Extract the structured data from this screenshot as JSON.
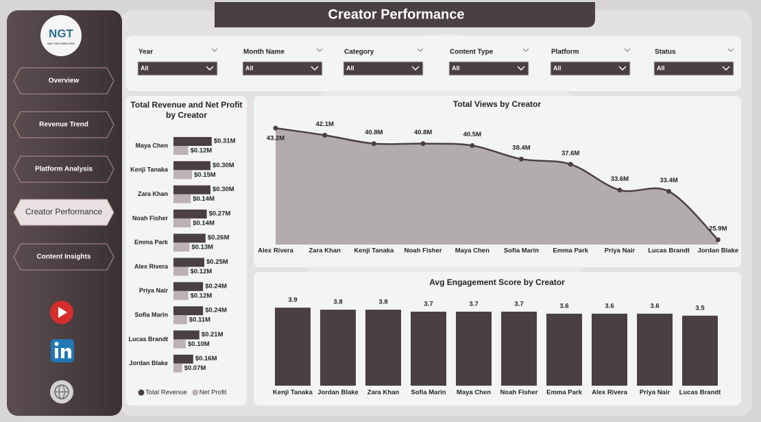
{
  "header": {
    "title": "Creator Performance"
  },
  "logo": {
    "text": "NGT",
    "subtitle": "NEXT GEN TEMPLATES"
  },
  "nav": [
    "Overview",
    "Revenue Trend",
    "Platform Analysis",
    "Creator Performance",
    "Content Insights"
  ],
  "filters": [
    {
      "label": "Year",
      "value": "All"
    },
    {
      "label": "Month Name",
      "value": "All"
    },
    {
      "label": "Category",
      "value": "All"
    },
    {
      "label": "Content Type",
      "value": "All"
    },
    {
      "label": "Platform",
      "value": "All"
    },
    {
      "label": "Status",
      "value": "All"
    }
  ],
  "chart_data": [
    {
      "type": "hbar",
      "title": "Total Revenue and Net Profit by Creator",
      "categories": [
        "Maya Chen",
        "Kenji Tanaka",
        "Zara Khan",
        "Noah Fisher",
        "Emma Park",
        "Alex Rivera",
        "Priya Nair",
        "Sofia Marin",
        "Lucas Brandt",
        "Jordan Blake"
      ],
      "series": [
        {
          "name": "Total Revenue",
          "color": "#4a3f41",
          "values": [
            0.31,
            0.3,
            0.3,
            0.27,
            0.26,
            0.25,
            0.24,
            0.24,
            0.21,
            0.16
          ],
          "value_labels": [
            "$0.31M",
            "$0.30M",
            "$0.30M",
            "$0.27M",
            "$0.26M",
            "$0.25M",
            "$0.24M",
            "$0.24M",
            "$0.21M",
            "$0.16M"
          ]
        },
        {
          "name": "Net Profit",
          "color": "#bcb1b3",
          "values": [
            0.12,
            0.15,
            0.14,
            0.14,
            0.13,
            0.12,
            0.12,
            0.11,
            0.1,
            0.07
          ],
          "value_labels": [
            "$0.12M",
            "$0.15M",
            "$0.14M",
            "$0.14M",
            "$0.13M",
            "$0.12M",
            "$0.12M",
            "$0.11M",
            "$0.10M",
            "$0.07M"
          ]
        }
      ]
    },
    {
      "type": "area",
      "title": "Total Views by Creator",
      "color": "#4a3f41",
      "fill": "#b3acad",
      "categories": [
        "Alex Rivera",
        "Zara Khan",
        "Kenji Tanaka",
        "Noah Fisher",
        "Maya Chen",
        "Sofia Marin",
        "Emma Park",
        "Priya Nair",
        "Lucas Brandt",
        "Jordan Blake"
      ],
      "values": [
        43.2,
        42.1,
        40.8,
        40.8,
        40.5,
        38.4,
        37.6,
        33.6,
        33.4,
        25.9
      ],
      "value_labels": [
        "43.2M",
        "42.1M",
        "40.8M",
        "40.8M",
        "40.5M",
        "38.4M",
        "37.6M",
        "33.6M",
        "33.4M",
        "25.9M"
      ]
    },
    {
      "type": "bar",
      "title": "Avg Engagement Score by Creator",
      "color": "#4a3f41",
      "categories": [
        "Kenji Tanaka",
        "Jordan Blake",
        "Zara Khan",
        "Sofia Marin",
        "Maya Chen",
        "Noah Fisher",
        "Emma Park",
        "Alex Rivera",
        "Priya Nair",
        "Lucas Brandt"
      ],
      "values": [
        3.9,
        3.8,
        3.8,
        3.7,
        3.7,
        3.7,
        3.6,
        3.6,
        3.6,
        3.5
      ]
    }
  ]
}
